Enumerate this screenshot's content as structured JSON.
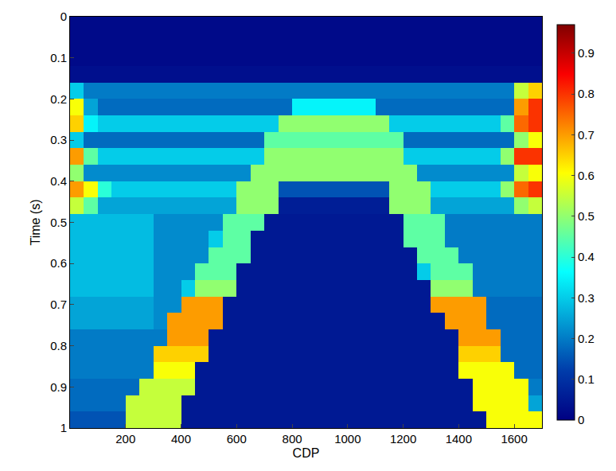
{
  "chart_data": {
    "type": "heatmap",
    "xlabel": "CDP",
    "ylabel": "Time (s)",
    "color": "jet",
    "x": [
      25,
      75,
      125,
      175,
      225,
      275,
      325,
      375,
      425,
      475,
      525,
      575,
      625,
      675,
      725,
      775,
      825,
      875,
      925,
      975,
      1025,
      1075,
      1125,
      1175,
      1225,
      1275,
      1325,
      1375,
      1425,
      1475,
      1525,
      1575,
      1625,
      1675
    ],
    "y": [
      0.02,
      0.06,
      0.1,
      0.14,
      0.18,
      0.22,
      0.26,
      0.3,
      0.34,
      0.38,
      0.42,
      0.46,
      0.5,
      0.54,
      0.58,
      0.62,
      0.66,
      0.7,
      0.74,
      0.78,
      0.82,
      0.86,
      0.9,
      0.94,
      0.98
    ],
    "z": [
      [
        0.02,
        0.02,
        0.02,
        0.02,
        0.02,
        0.02,
        0.02,
        0.02,
        0.02,
        0.02,
        0.02,
        0.02,
        0.02,
        0.02,
        0.02,
        0.02,
        0.02,
        0.02,
        0.02,
        0.02,
        0.02,
        0.02,
        0.02,
        0.02,
        0.02,
        0.02,
        0.02,
        0.02,
        0.02,
        0.02,
        0.02,
        0.02,
        0.02,
        0.02
      ],
      [
        0.02,
        0.02,
        0.02,
        0.02,
        0.02,
        0.02,
        0.02,
        0.02,
        0.02,
        0.02,
        0.02,
        0.02,
        0.02,
        0.02,
        0.02,
        0.02,
        0.02,
        0.02,
        0.02,
        0.02,
        0.02,
        0.02,
        0.02,
        0.02,
        0.02,
        0.02,
        0.02,
        0.02,
        0.02,
        0.02,
        0.02,
        0.02,
        0.02,
        0.02
      ],
      [
        0.02,
        0.02,
        0.02,
        0.02,
        0.02,
        0.02,
        0.02,
        0.02,
        0.02,
        0.02,
        0.02,
        0.02,
        0.02,
        0.02,
        0.02,
        0.02,
        0.02,
        0.02,
        0.02,
        0.02,
        0.02,
        0.02,
        0.02,
        0.02,
        0.02,
        0.02,
        0.02,
        0.02,
        0.02,
        0.02,
        0.02,
        0.02,
        0.02,
        0.02
      ],
      [
        0.03,
        0.03,
        0.03,
        0.03,
        0.03,
        0.03,
        0.03,
        0.03,
        0.03,
        0.03,
        0.03,
        0.03,
        0.03,
        0.03,
        0.03,
        0.03,
        0.03,
        0.03,
        0.03,
        0.03,
        0.03,
        0.03,
        0.03,
        0.03,
        0.03,
        0.03,
        0.03,
        0.03,
        0.03,
        0.03,
        0.03,
        0.03,
        0.03,
        0.03
      ],
      [
        0.3,
        0.2,
        0.2,
        0.2,
        0.2,
        0.2,
        0.2,
        0.2,
        0.2,
        0.2,
        0.2,
        0.2,
        0.2,
        0.2,
        0.2,
        0.2,
        0.2,
        0.2,
        0.2,
        0.2,
        0.2,
        0.2,
        0.2,
        0.2,
        0.2,
        0.2,
        0.2,
        0.2,
        0.2,
        0.2,
        0.2,
        0.2,
        0.55,
        0.65
      ],
      [
        0.6,
        0.25,
        0.18,
        0.18,
        0.18,
        0.18,
        0.18,
        0.18,
        0.18,
        0.18,
        0.18,
        0.18,
        0.18,
        0.18,
        0.18,
        0.18,
        0.35,
        0.35,
        0.35,
        0.35,
        0.35,
        0.35,
        0.18,
        0.18,
        0.18,
        0.18,
        0.18,
        0.18,
        0.18,
        0.18,
        0.18,
        0.18,
        0.7,
        0.8
      ],
      [
        0.65,
        0.35,
        0.3,
        0.3,
        0.3,
        0.3,
        0.3,
        0.3,
        0.3,
        0.3,
        0.3,
        0.3,
        0.3,
        0.3,
        0.3,
        0.5,
        0.5,
        0.5,
        0.5,
        0.5,
        0.5,
        0.5,
        0.5,
        0.3,
        0.3,
        0.3,
        0.3,
        0.3,
        0.3,
        0.3,
        0.3,
        0.45,
        0.75,
        0.8
      ],
      [
        0.3,
        0.18,
        0.18,
        0.18,
        0.18,
        0.18,
        0.18,
        0.18,
        0.18,
        0.18,
        0.18,
        0.18,
        0.18,
        0.18,
        0.45,
        0.45,
        0.45,
        0.45,
        0.45,
        0.45,
        0.45,
        0.45,
        0.45,
        0.45,
        0.18,
        0.18,
        0.18,
        0.18,
        0.18,
        0.18,
        0.18,
        0.18,
        0.5,
        0.6
      ],
      [
        0.7,
        0.45,
        0.3,
        0.3,
        0.3,
        0.3,
        0.3,
        0.3,
        0.3,
        0.3,
        0.3,
        0.3,
        0.3,
        0.3,
        0.5,
        0.5,
        0.5,
        0.5,
        0.5,
        0.5,
        0.5,
        0.5,
        0.5,
        0.5,
        0.3,
        0.3,
        0.3,
        0.3,
        0.3,
        0.3,
        0.3,
        0.5,
        0.8,
        0.8
      ],
      [
        0.5,
        0.22,
        0.22,
        0.22,
        0.22,
        0.22,
        0.22,
        0.22,
        0.22,
        0.22,
        0.22,
        0.22,
        0.22,
        0.5,
        0.5,
        0.5,
        0.5,
        0.5,
        0.5,
        0.5,
        0.5,
        0.5,
        0.5,
        0.5,
        0.5,
        0.22,
        0.22,
        0.22,
        0.22,
        0.22,
        0.22,
        0.22,
        0.55,
        0.6
      ],
      [
        0.7,
        0.6,
        0.4,
        0.3,
        0.3,
        0.3,
        0.3,
        0.3,
        0.3,
        0.3,
        0.3,
        0.3,
        0.5,
        0.5,
        0.5,
        0.15,
        0.15,
        0.15,
        0.15,
        0.15,
        0.15,
        0.15,
        0.15,
        0.5,
        0.5,
        0.5,
        0.3,
        0.3,
        0.3,
        0.3,
        0.3,
        0.5,
        0.75,
        0.8
      ],
      [
        0.55,
        0.45,
        0.25,
        0.25,
        0.25,
        0.25,
        0.25,
        0.25,
        0.25,
        0.25,
        0.25,
        0.25,
        0.5,
        0.5,
        0.5,
        0.06,
        0.06,
        0.06,
        0.06,
        0.06,
        0.06,
        0.06,
        0.06,
        0.5,
        0.5,
        0.5,
        0.25,
        0.25,
        0.25,
        0.25,
        0.25,
        0.25,
        0.5,
        0.55
      ],
      [
        0.28,
        0.28,
        0.28,
        0.28,
        0.28,
        0.28,
        0.22,
        0.22,
        0.22,
        0.22,
        0.22,
        0.45,
        0.45,
        0.45,
        0.05,
        0.05,
        0.05,
        0.05,
        0.05,
        0.05,
        0.05,
        0.05,
        0.05,
        0.05,
        0.45,
        0.45,
        0.45,
        0.2,
        0.2,
        0.2,
        0.2,
        0.2,
        0.2,
        0.2
      ],
      [
        0.28,
        0.28,
        0.28,
        0.28,
        0.28,
        0.28,
        0.22,
        0.22,
        0.22,
        0.22,
        0.3,
        0.45,
        0.45,
        0.05,
        0.05,
        0.05,
        0.05,
        0.05,
        0.05,
        0.05,
        0.05,
        0.05,
        0.05,
        0.05,
        0.45,
        0.45,
        0.45,
        0.2,
        0.2,
        0.2,
        0.2,
        0.2,
        0.2,
        0.2
      ],
      [
        0.28,
        0.28,
        0.28,
        0.28,
        0.28,
        0.28,
        0.22,
        0.22,
        0.22,
        0.22,
        0.45,
        0.45,
        0.45,
        0.05,
        0.05,
        0.05,
        0.05,
        0.05,
        0.05,
        0.05,
        0.05,
        0.05,
        0.05,
        0.05,
        0.05,
        0.45,
        0.45,
        0.45,
        0.2,
        0.2,
        0.2,
        0.2,
        0.2,
        0.2
      ],
      [
        0.28,
        0.28,
        0.28,
        0.28,
        0.28,
        0.28,
        0.22,
        0.22,
        0.22,
        0.45,
        0.45,
        0.45,
        0.05,
        0.05,
        0.05,
        0.05,
        0.05,
        0.05,
        0.05,
        0.05,
        0.05,
        0.05,
        0.05,
        0.05,
        0.05,
        0.3,
        0.45,
        0.45,
        0.45,
        0.2,
        0.2,
        0.2,
        0.2,
        0.2
      ],
      [
        0.28,
        0.28,
        0.28,
        0.28,
        0.28,
        0.28,
        0.22,
        0.22,
        0.3,
        0.5,
        0.5,
        0.5,
        0.05,
        0.05,
        0.05,
        0.05,
        0.05,
        0.05,
        0.05,
        0.05,
        0.05,
        0.05,
        0.05,
        0.05,
        0.05,
        0.05,
        0.5,
        0.5,
        0.5,
        0.2,
        0.2,
        0.2,
        0.2,
        0.2
      ],
      [
        0.25,
        0.25,
        0.25,
        0.25,
        0.25,
        0.25,
        0.22,
        0.22,
        0.7,
        0.7,
        0.7,
        0.05,
        0.05,
        0.05,
        0.05,
        0.05,
        0.05,
        0.05,
        0.05,
        0.05,
        0.05,
        0.05,
        0.05,
        0.05,
        0.05,
        0.05,
        0.7,
        0.7,
        0.7,
        0.7,
        0.18,
        0.18,
        0.18,
        0.18
      ],
      [
        0.25,
        0.25,
        0.25,
        0.25,
        0.25,
        0.25,
        0.22,
        0.7,
        0.7,
        0.7,
        0.7,
        0.05,
        0.05,
        0.05,
        0.05,
        0.05,
        0.05,
        0.05,
        0.05,
        0.05,
        0.05,
        0.05,
        0.05,
        0.05,
        0.05,
        0.05,
        0.05,
        0.7,
        0.7,
        0.7,
        0.18,
        0.18,
        0.18,
        0.18
      ],
      [
        0.2,
        0.2,
        0.2,
        0.2,
        0.2,
        0.2,
        0.2,
        0.7,
        0.7,
        0.7,
        0.05,
        0.05,
        0.05,
        0.05,
        0.05,
        0.05,
        0.05,
        0.05,
        0.05,
        0.05,
        0.05,
        0.05,
        0.05,
        0.05,
        0.05,
        0.05,
        0.05,
        0.05,
        0.7,
        0.7,
        0.7,
        0.18,
        0.18,
        0.18
      ],
      [
        0.2,
        0.2,
        0.2,
        0.2,
        0.2,
        0.2,
        0.65,
        0.65,
        0.65,
        0.65,
        0.05,
        0.05,
        0.05,
        0.05,
        0.05,
        0.05,
        0.05,
        0.05,
        0.05,
        0.05,
        0.05,
        0.05,
        0.05,
        0.05,
        0.05,
        0.05,
        0.05,
        0.05,
        0.65,
        0.65,
        0.65,
        0.18,
        0.18,
        0.18
      ],
      [
        0.2,
        0.2,
        0.2,
        0.2,
        0.2,
        0.2,
        0.6,
        0.6,
        0.6,
        0.05,
        0.05,
        0.05,
        0.05,
        0.05,
        0.05,
        0.05,
        0.05,
        0.05,
        0.05,
        0.05,
        0.05,
        0.05,
        0.05,
        0.05,
        0.05,
        0.05,
        0.05,
        0.05,
        0.6,
        0.6,
        0.6,
        0.6,
        0.18,
        0.18
      ],
      [
        0.18,
        0.18,
        0.18,
        0.18,
        0.18,
        0.55,
        0.55,
        0.55,
        0.55,
        0.05,
        0.05,
        0.05,
        0.05,
        0.05,
        0.05,
        0.05,
        0.05,
        0.05,
        0.05,
        0.05,
        0.05,
        0.05,
        0.05,
        0.05,
        0.05,
        0.05,
        0.05,
        0.05,
        0.05,
        0.6,
        0.6,
        0.6,
        0.6,
        0.2
      ],
      [
        0.18,
        0.18,
        0.18,
        0.18,
        0.55,
        0.55,
        0.55,
        0.55,
        0.05,
        0.05,
        0.05,
        0.05,
        0.05,
        0.05,
        0.05,
        0.05,
        0.05,
        0.05,
        0.05,
        0.05,
        0.05,
        0.05,
        0.05,
        0.05,
        0.05,
        0.05,
        0.05,
        0.05,
        0.05,
        0.6,
        0.6,
        0.6,
        0.6,
        0.25
      ],
      [
        0.15,
        0.15,
        0.15,
        0.15,
        0.55,
        0.55,
        0.55,
        0.55,
        0.05,
        0.05,
        0.05,
        0.05,
        0.05,
        0.05,
        0.05,
        0.05,
        0.05,
        0.05,
        0.05,
        0.05,
        0.05,
        0.05,
        0.05,
        0.05,
        0.05,
        0.05,
        0.05,
        0.05,
        0.05,
        0.05,
        0.6,
        0.6,
        0.6,
        0.6
      ]
    ],
    "xlim": [
      0,
      1700
    ],
    "xticks": [
      200,
      400,
      600,
      800,
      1000,
      1200,
      1400,
      1600
    ],
    "ylim": [
      1,
      0
    ],
    "yticks": [
      0,
      0.1,
      0.2,
      0.3,
      0.4,
      0.5,
      0.6,
      0.7,
      0.8,
      0.9,
      1
    ],
    "zlim": [
      0,
      0.97
    ],
    "zticks": [
      0,
      0.1,
      0.2,
      0.3,
      0.4,
      0.5,
      0.6,
      0.7,
      0.8,
      0.9
    ],
    "grid": false
  }
}
